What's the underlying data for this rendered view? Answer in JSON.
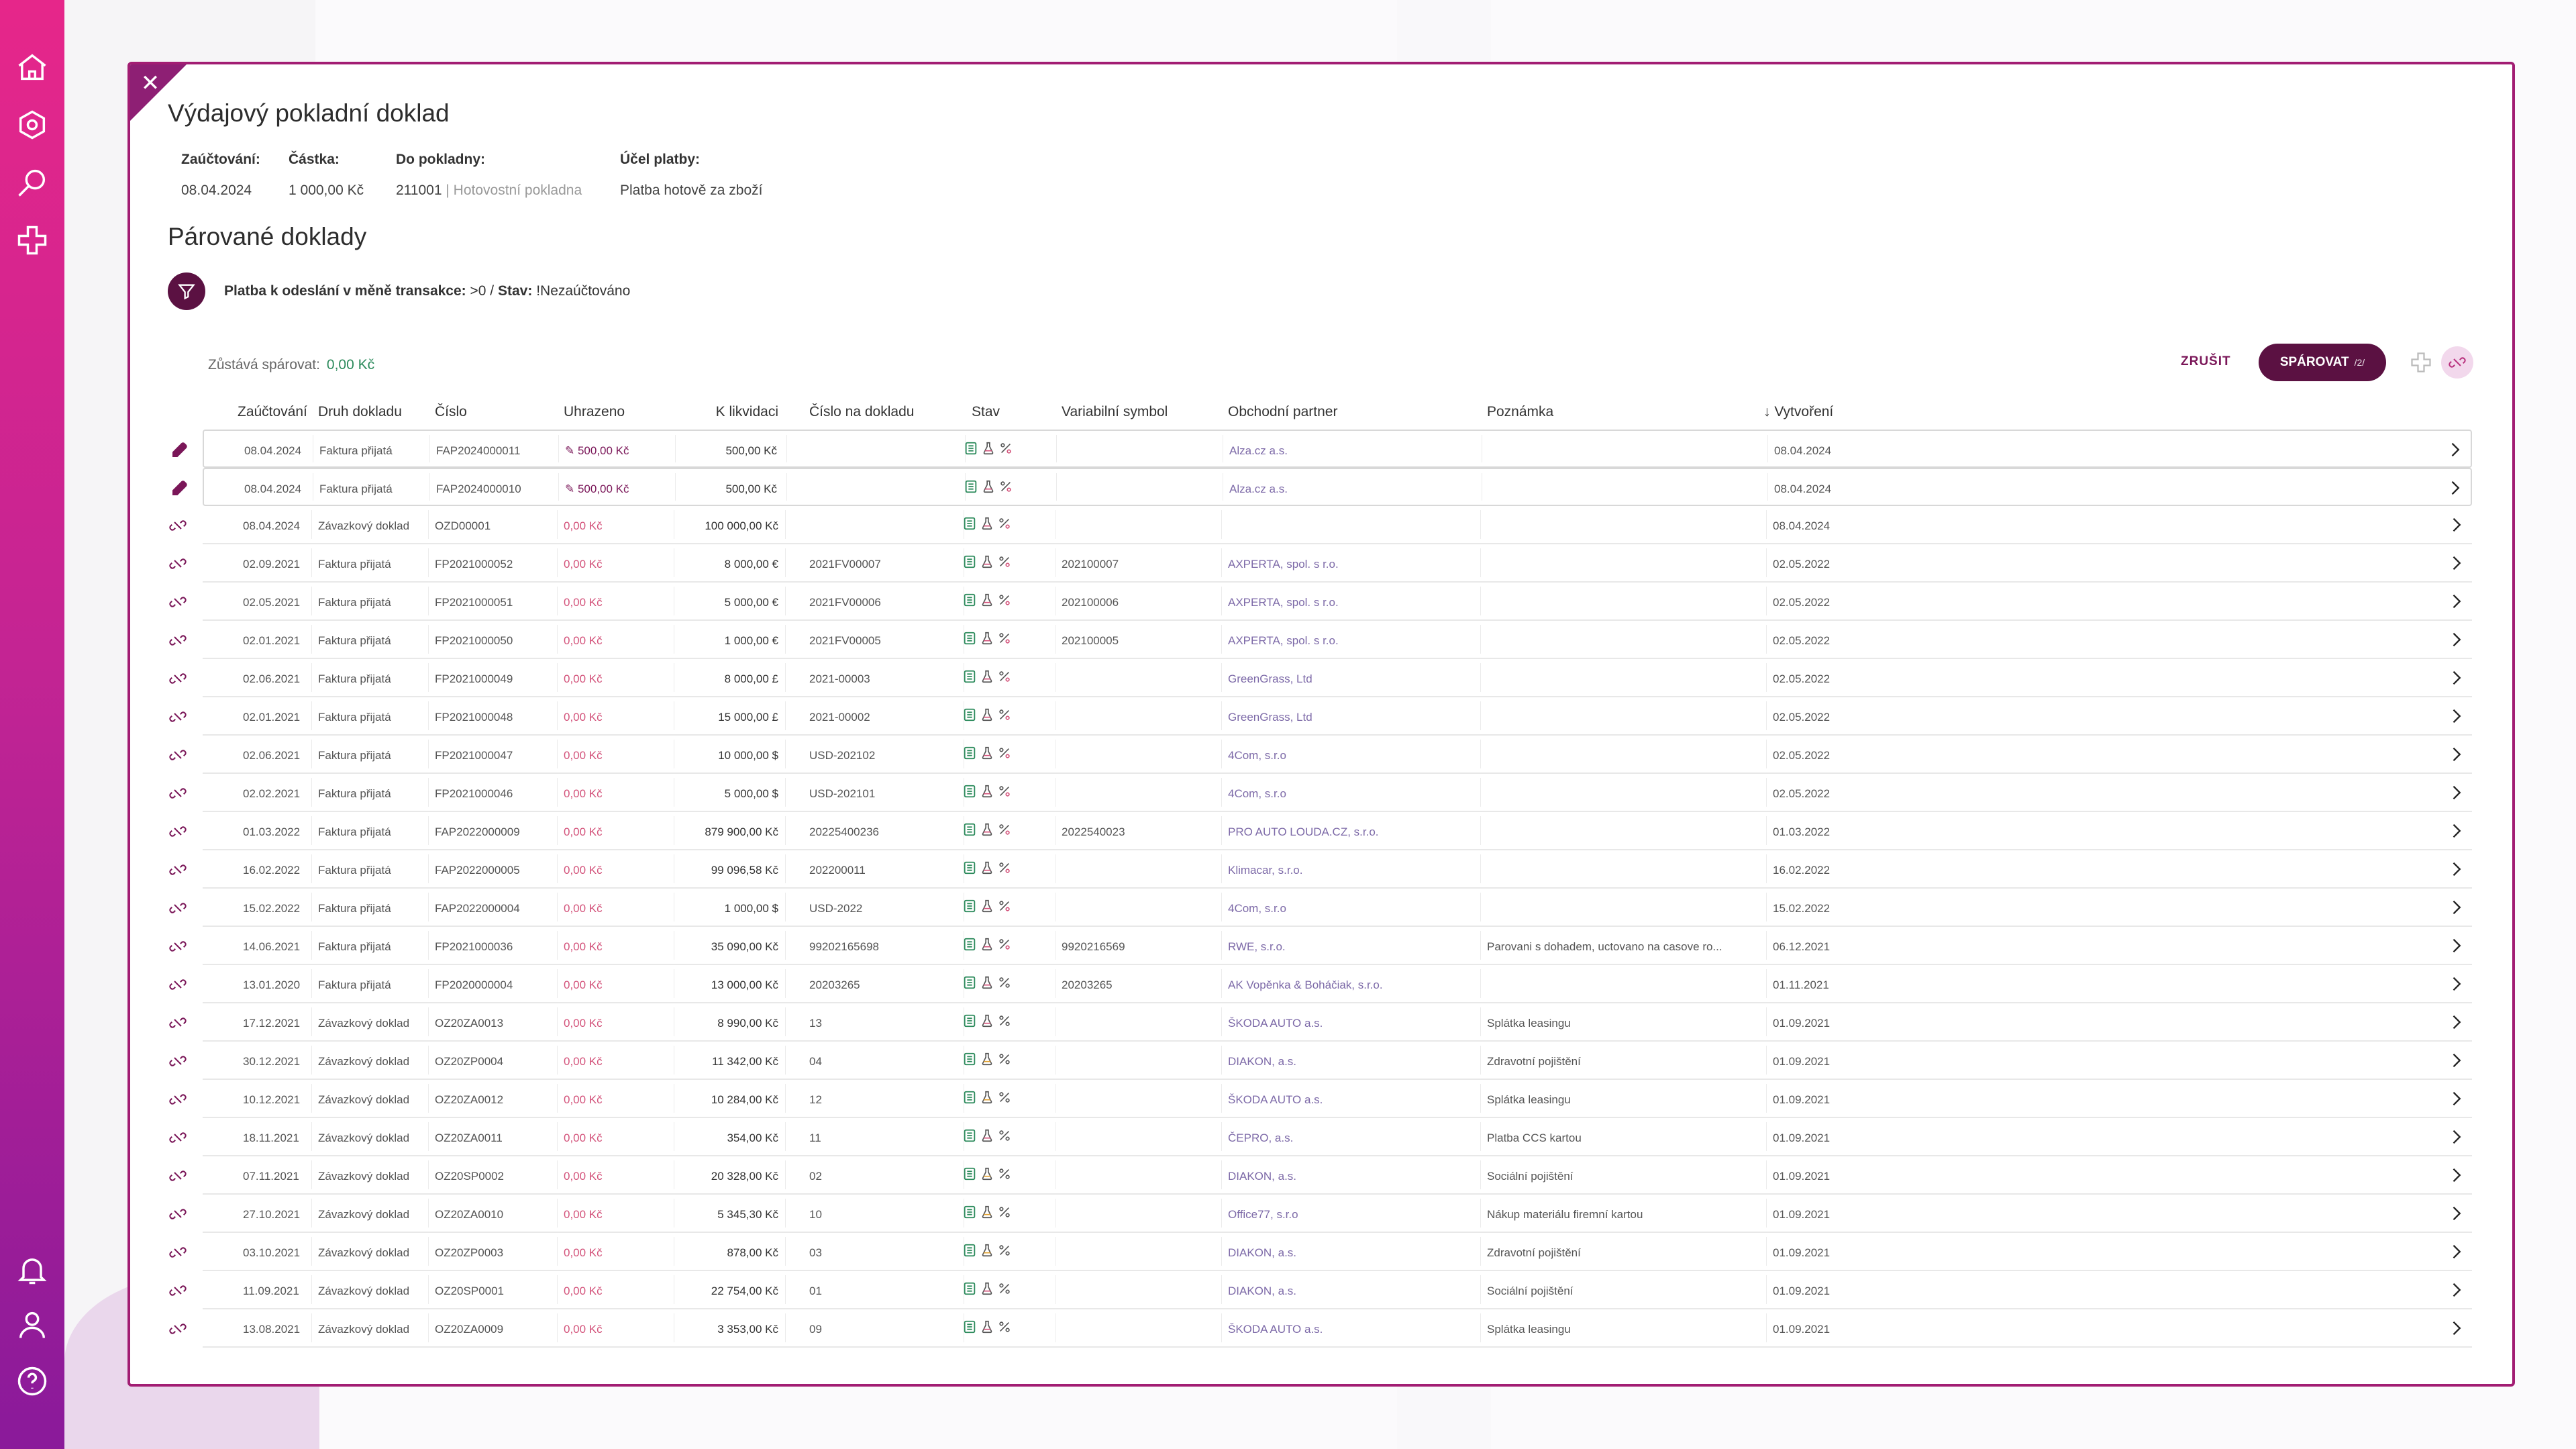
{
  "modal": {
    "title": "Výdajový pokladní doklad",
    "meta": {
      "posting_label": "Zaúčtování:",
      "posting_value": "08.04.2024",
      "amount_label": "Částka:",
      "amount_value": "1 000,00 Kč",
      "cashdesk_label": "Do pokladny:",
      "cashdesk_code": "211001",
      "cashdesk_name": "| Hotovostní pokladna",
      "purpose_label": "Účel platby:",
      "purpose_value": "Platba hotově za zboží"
    },
    "subtitle": "Párované doklady",
    "filter": {
      "label": "Platba k odeslání v měně transakce:",
      "value": ">0 /",
      "state_label": "Stav:",
      "state_value": "!Nezaúčtováno"
    },
    "remain_label": "Zůstává spárovat:",
    "remain_value": "0,00 Kč",
    "cancel_label": "ZRUŠIT",
    "pair_label": "SPÁROVAT",
    "pair_count": "/2/"
  },
  "table": {
    "headers": [
      "Zaúčtování",
      "Druh dokladu",
      "Číslo",
      "Uhrazeno",
      "K likvidaci",
      "Číslo na dokladu",
      "Stav",
      "Variabilní symbol",
      "Obchodní partner",
      "Poznámka",
      "↓ Vytvoření"
    ],
    "rows": [
      {
        "date": "08.04.2024",
        "type": "Faktura přijatá",
        "num": "FAP2024000011",
        "paid": "500,00 Kč",
        "liq": "500,00 Kč",
        "docnum": "",
        "vs": "",
        "partner": "Alza.cz a.s.",
        "note": "",
        "created": "08.04.2024",
        "selected": true
      },
      {
        "date": "08.04.2024",
        "type": "Faktura přijatá",
        "num": "FAP2024000010",
        "paid": "500,00 Kč",
        "liq": "500,00 Kč",
        "docnum": "",
        "vs": "",
        "partner": "Alza.cz a.s.",
        "note": "",
        "created": "08.04.2024",
        "selected": true
      },
      {
        "date": "08.04.2024",
        "type": "Závazkový doklad",
        "num": "OZD00001",
        "paid": "0,00 Kč",
        "liq": "100 000,00 Kč",
        "docnum": "",
        "vs": "",
        "partner": "",
        "note": "",
        "created": "08.04.2024",
        "selected": false
      },
      {
        "date": "02.09.2021",
        "type": "Faktura přijatá",
        "num": "FP2021000052",
        "paid": "0,00 Kč",
        "liq": "8 000,00 €",
        "docnum": "2021FV00007",
        "vs": "202100007",
        "partner": "AXPERTA, spol. s r.o.",
        "note": "",
        "created": "02.05.2022",
        "selected": false
      },
      {
        "date": "02.05.2021",
        "type": "Faktura přijatá",
        "num": "FP2021000051",
        "paid": "0,00 Kč",
        "liq": "5 000,00 €",
        "docnum": "2021FV00006",
        "vs": "202100006",
        "partner": "AXPERTA, spol. s r.o.",
        "note": "",
        "created": "02.05.2022",
        "selected": false
      },
      {
        "date": "02.01.2021",
        "type": "Faktura přijatá",
        "num": "FP2021000050",
        "paid": "0,00 Kč",
        "liq": "1 000,00 €",
        "docnum": "2021FV00005",
        "vs": "202100005",
        "partner": "AXPERTA, spol. s r.o.",
        "note": "",
        "created": "02.05.2022",
        "selected": false
      },
      {
        "date": "02.06.2021",
        "type": "Faktura přijatá",
        "num": "FP2021000049",
        "paid": "0,00 Kč",
        "liq": "8 000,00 £",
        "docnum": "2021-00003",
        "vs": "",
        "partner": "GreenGrass, Ltd",
        "note": "",
        "created": "02.05.2022",
        "selected": false
      },
      {
        "date": "02.01.2021",
        "type": "Faktura přijatá",
        "num": "FP2021000048",
        "paid": "0,00 Kč",
        "liq": "15 000,00 £",
        "docnum": "2021-00002",
        "vs": "",
        "partner": "GreenGrass, Ltd",
        "note": "",
        "created": "02.05.2022",
        "selected": false
      },
      {
        "date": "02.06.2021",
        "type": "Faktura přijatá",
        "num": "FP2021000047",
        "paid": "0,00 Kč",
        "liq": "10 000,00 $",
        "docnum": "USD-202102",
        "vs": "",
        "partner": "4Com, s.r.o",
        "note": "",
        "created": "02.05.2022",
        "selected": false
      },
      {
        "date": "02.02.2021",
        "type": "Faktura přijatá",
        "num": "FP2021000046",
        "paid": "0,00 Kč",
        "liq": "5 000,00 $",
        "docnum": "USD-202101",
        "vs": "",
        "partner": "4Com, s.r.o",
        "note": "",
        "created": "02.05.2022",
        "selected": false
      },
      {
        "date": "01.03.2022",
        "type": "Faktura přijatá",
        "num": "FAP2022000009",
        "paid": "0,00 Kč",
        "liq": "879 900,00 Kč",
        "docnum": "20225400236",
        "vs": "2022540023",
        "partner": "PRO AUTO LOUDA.CZ, s.r.o.",
        "note": "",
        "created": "01.03.2022",
        "selected": false
      },
      {
        "date": "16.02.2022",
        "type": "Faktura přijatá",
        "num": "FAP2022000005",
        "paid": "0,00 Kč",
        "liq": "99 096,58 Kč",
        "docnum": "202200011",
        "vs": "",
        "partner": "Klimacar, s.r.o.",
        "note": "",
        "created": "16.02.2022",
        "selected": false
      },
      {
        "date": "15.02.2022",
        "type": "Faktura přijatá",
        "num": "FAP2022000004",
        "paid": "0,00 Kč",
        "liq": "1 000,00 $",
        "docnum": "USD-2022",
        "vs": "",
        "partner": "4Com, s.r.o",
        "note": "",
        "created": "15.02.2022",
        "selected": false
      },
      {
        "date": "14.06.2021",
        "type": "Faktura přijatá",
        "num": "FP2021000036",
        "paid": "0,00 Kč",
        "liq": "35 090,00 Kč",
        "docnum": "99202165698",
        "vs": "9920216569",
        "partner": "RWE, s.r.o.",
        "note": "Parovani s dohadem, uctovano na casove ro...",
        "created": "06.12.2021",
        "selected": false
      },
      {
        "date": "13.01.2020",
        "type": "Faktura přijatá",
        "num": "FP2020000004",
        "paid": "0,00 Kč",
        "liq": "13 000,00 Kč",
        "docnum": "20203265",
        "vs": "20203265",
        "partner": "AK Vopěnka & Boháčiak, s.r.o.",
        "note": "",
        "created": "01.11.2021",
        "selected": false
      },
      {
        "date": "17.12.2021",
        "type": "Závazkový doklad",
        "num": "OZ20ZA0013",
        "paid": "0,00 Kč",
        "liq": "8 990,00 Kč",
        "docnum": "13",
        "vs": "",
        "partner": "ŠKODA AUTO a.s.",
        "note": "Splátka leasingu",
        "created": "01.09.2021",
        "selected": false
      },
      {
        "date": "30.12.2021",
        "type": "Závazkový doklad",
        "num": "OZ20ZP0004",
        "paid": "0,00 Kč",
        "liq": "11 342,00 Kč",
        "docnum": "04",
        "vs": "",
        "partner": "DIAKON, a.s.",
        "note": "Zdravotní pojištění",
        "created": "01.09.2021",
        "selected": false
      },
      {
        "date": "10.12.2021",
        "type": "Závazkový doklad",
        "num": "OZ20ZA0012",
        "paid": "0,00 Kč",
        "liq": "10 284,00 Kč",
        "docnum": "12",
        "vs": "",
        "partner": "ŠKODA AUTO a.s.",
        "note": "Splátka leasingu",
        "created": "01.09.2021",
        "selected": false
      },
      {
        "date": "18.11.2021",
        "type": "Závazkový doklad",
        "num": "OZ20ZA0011",
        "paid": "0,00 Kč",
        "liq": "354,00 Kč",
        "docnum": "11",
        "vs": "",
        "partner": "ČEPRO, a.s.",
        "note": "Platba CCS kartou",
        "created": "01.09.2021",
        "selected": false
      },
      {
        "date": "07.11.2021",
        "type": "Závazkový doklad",
        "num": "OZ20SP0002",
        "paid": "0,00 Kč",
        "liq": "20 328,00 Kč",
        "docnum": "02",
        "vs": "",
        "partner": "DIAKON, a.s.",
        "note": "Sociální pojištění",
        "created": "01.09.2021",
        "selected": false
      },
      {
        "date": "27.10.2021",
        "type": "Závazkový doklad",
        "num": "OZ20ZA0010",
        "paid": "0,00 Kč",
        "liq": "5 345,30 Kč",
        "docnum": "10",
        "vs": "",
        "partner": "Office77, s.r.o",
        "note": "Nákup materiálu firemní kartou",
        "created": "01.09.2021",
        "selected": false
      },
      {
        "date": "03.10.2021",
        "type": "Závazkový doklad",
        "num": "OZ20ZP0003",
        "paid": "0,00 Kč",
        "liq": "878,00 Kč",
        "docnum": "03",
        "vs": "",
        "partner": "DIAKON, a.s.",
        "note": "Zdravotní pojištění",
        "created": "01.09.2021",
        "selected": false
      },
      {
        "date": "11.09.2021",
        "type": "Závazkový doklad",
        "num": "OZ20SP0001",
        "paid": "0,00 Kč",
        "liq": "22 754,00 Kč",
        "docnum": "01",
        "vs": "",
        "partner": "DIAKON, a.s.",
        "note": "Sociální pojištění",
        "created": "01.09.2021",
        "selected": false
      },
      {
        "date": "13.08.2021",
        "type": "Závazkový doklad",
        "num": "OZ20ZA0009",
        "paid": "0,00 Kč",
        "liq": "3 353,00 Kč",
        "docnum": "09",
        "vs": "",
        "partner": "ŠKODA AUTO a.s.",
        "note": "Splátka leasingu",
        "created": "01.09.2021",
        "selected": false
      }
    ]
  },
  "colors": {
    "accent": "#5b1142",
    "border": "#a21d73",
    "rail_top": "#e6268a",
    "rail_bottom": "#8a1a9a"
  }
}
